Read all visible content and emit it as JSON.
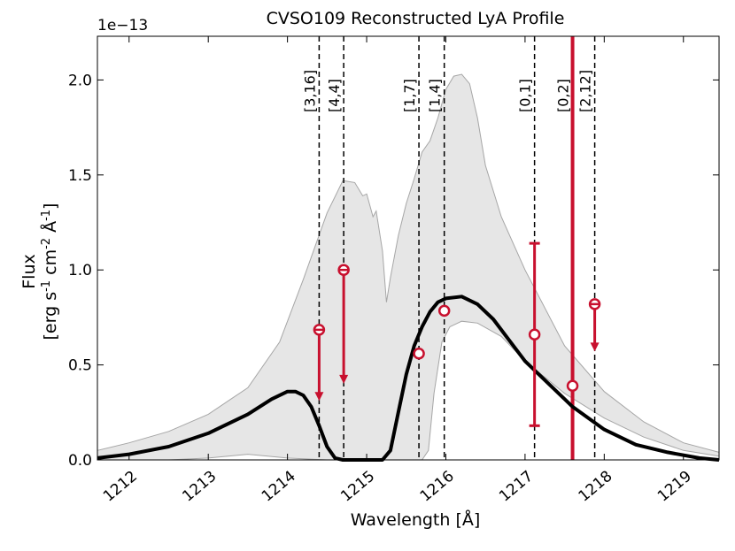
{
  "chart_data": {
    "type": "line",
    "title": "CVSO109 Reconstructed LyA Profile",
    "xlabel": "Wavelength [Å]",
    "ylabel_line1": "Flux",
    "ylabel_line2": "[erg s",
    "ylabel_sup1": "-1",
    "ylabel_mid1": " cm",
    "ylabel_sup2": "-2",
    "ylabel_mid2": " Å",
    "ylabel_sup3": "-1",
    "ylabel_end": "]",
    "y_offset_label": "1e−13",
    "xlim": [
      1211.6,
      1219.45
    ],
    "ylim": [
      0,
      2.23
    ],
    "x_ticks": [
      1212,
      1213,
      1214,
      1215,
      1216,
      1217,
      1218,
      1219
    ],
    "y_ticks": [
      0.0,
      0.5,
      1.0,
      1.5,
      2.0
    ],
    "y_tick_labels": [
      "0.0",
      "0.5",
      "1.0",
      "1.5",
      "2.0"
    ],
    "colors": {
      "model": "#000000",
      "band_fill": "#e6e6e6",
      "band_edge": "#a6a6a6",
      "measurement": "#c8102e",
      "vline": "#000000"
    },
    "band_upper": {
      "x": [
        1211.6,
        1212.0,
        1212.5,
        1213.0,
        1213.5,
        1213.9,
        1214.2,
        1214.5,
        1214.7,
        1214.85,
        1214.95,
        1215.0,
        1215.08,
        1215.12,
        1215.2,
        1215.25,
        1215.3,
        1215.4,
        1215.5,
        1215.6,
        1215.7,
        1215.8,
        1215.9,
        1216.0,
        1216.1,
        1216.2,
        1216.3,
        1216.4,
        1216.5,
        1216.7,
        1217.0,
        1217.5,
        1218.0,
        1218.5,
        1219.0,
        1219.45
      ],
      "y": [
        0.05,
        0.09,
        0.15,
        0.24,
        0.38,
        0.62,
        0.95,
        1.3,
        1.47,
        1.46,
        1.39,
        1.4,
        1.28,
        1.31,
        1.1,
        0.83,
        0.96,
        1.18,
        1.35,
        1.48,
        1.62,
        1.68,
        1.8,
        1.95,
        2.02,
        2.03,
        1.98,
        1.8,
        1.55,
        1.28,
        1.0,
        0.6,
        0.36,
        0.2,
        0.09,
        0.04
      ]
    },
    "band_lower": {
      "x": [
        1211.6,
        1212.5,
        1213.0,
        1213.5,
        1214.0,
        1214.5,
        1214.8,
        1215.5,
        1215.7,
        1215.78,
        1215.85,
        1215.95,
        1216.05,
        1216.2,
        1216.4,
        1216.7,
        1217.0,
        1217.5,
        1218.0,
        1218.5,
        1219.0,
        1219.45
      ],
      "y": [
        0.0,
        0.0,
        0.01,
        0.03,
        0.01,
        0.0,
        0.0,
        0.0,
        0.0,
        0.05,
        0.35,
        0.62,
        0.7,
        0.73,
        0.72,
        0.65,
        0.52,
        0.35,
        0.22,
        0.12,
        0.05,
        0.02
      ]
    },
    "model_line": {
      "x": [
        1211.6,
        1212.0,
        1212.5,
        1213.0,
        1213.5,
        1213.8,
        1214.0,
        1214.1,
        1214.2,
        1214.3,
        1214.4,
        1214.5,
        1214.6,
        1214.7,
        1215.0,
        1215.2,
        1215.3,
        1215.4,
        1215.5,
        1215.6,
        1215.7,
        1215.8,
        1215.9,
        1216.0,
        1216.2,
        1216.4,
        1216.6,
        1216.8,
        1217.0,
        1217.3,
        1217.6,
        1218.0,
        1218.4,
        1218.8,
        1219.2,
        1219.45
      ],
      "y": [
        0.01,
        0.03,
        0.07,
        0.14,
        0.24,
        0.32,
        0.36,
        0.36,
        0.34,
        0.28,
        0.18,
        0.07,
        0.01,
        0.0,
        0.0,
        0.0,
        0.05,
        0.25,
        0.45,
        0.6,
        0.7,
        0.78,
        0.83,
        0.85,
        0.86,
        0.82,
        0.74,
        0.63,
        0.52,
        0.4,
        0.28,
        0.16,
        0.08,
        0.04,
        0.01,
        0.0
      ]
    },
    "vertical_lines": [
      {
        "label": "[3,16]",
        "x": 1214.4,
        "thick": false
      },
      {
        "label": "[4,4]",
        "x": 1214.71,
        "thick": false
      },
      {
        "label": "[1,7]",
        "x": 1215.66,
        "thick": false
      },
      {
        "label": "[1,4]",
        "x": 1215.98,
        "thick": false
      },
      {
        "label": "[0,1]",
        "x": 1217.12,
        "thick": false
      },
      {
        "label": "[0,2]",
        "x": 1217.6,
        "thick": true
      },
      {
        "label": "[2,12]",
        "x": 1217.88,
        "thick": false
      }
    ],
    "measurements": [
      {
        "x": 1214.4,
        "y": 0.685,
        "type": "upper_limit",
        "arrow_to": 0.32
      },
      {
        "x": 1214.71,
        "y": 1.0,
        "type": "upper_limit",
        "arrow_to": 0.41
      },
      {
        "x": 1215.66,
        "y": 0.56,
        "type": "point",
        "err": 0.03
      },
      {
        "x": 1215.98,
        "y": 0.785,
        "type": "point",
        "err": 0.0
      },
      {
        "x": 1217.12,
        "y": 0.66,
        "type": "errorbar",
        "lo": 0.18,
        "hi": 1.14
      },
      {
        "x": 1217.6,
        "y": 0.39,
        "type": "point",
        "err": 0.0
      },
      {
        "x": 1217.88,
        "y": 0.82,
        "type": "upper_limit",
        "arrow_to": 0.58
      }
    ]
  }
}
